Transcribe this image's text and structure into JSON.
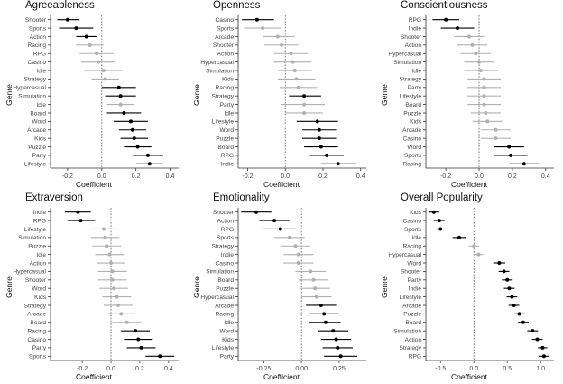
{
  "chart_data": [
    {
      "type": "scatter",
      "title": "Agreeableness",
      "xlabel": "Coefficient",
      "ylabel": "Genre",
      "xlim": [
        -0.3,
        0.45
      ],
      "xticks": [
        "-0.2",
        "0.0",
        "0.2",
        "0.4"
      ],
      "xtick_values": [
        -0.2,
        0.0,
        0.2,
        0.4
      ],
      "categories": [
        "Shooter",
        "Sports",
        "Action",
        "Racing",
        "RPG",
        "Casino",
        "Idle",
        "Strategy",
        "Hypercasual",
        "Simulation",
        "Idle",
        "Board",
        "Word",
        "Arcade",
        "Kids",
        "Puzzle",
        "Party",
        "Lifestyle"
      ],
      "estimates": [
        -0.2,
        -0.15,
        -0.09,
        -0.07,
        -0.03,
        -0.02,
        0.01,
        0.02,
        0.1,
        0.11,
        0.11,
        0.13,
        0.17,
        0.18,
        0.19,
        0.21,
        0.27,
        0.28
      ],
      "ci_low": [
        -0.26,
        -0.25,
        -0.15,
        -0.15,
        -0.13,
        -0.12,
        -0.1,
        -0.06,
        0.0,
        0.02,
        0.03,
        0.03,
        0.07,
        0.1,
        0.11,
        0.13,
        0.18,
        0.2
      ],
      "ci_high": [
        -0.13,
        -0.05,
        -0.03,
        0.01,
        0.07,
        0.08,
        0.12,
        0.1,
        0.2,
        0.2,
        0.19,
        0.23,
        0.27,
        0.26,
        0.27,
        0.29,
        0.36,
        0.36
      ],
      "significant": [
        true,
        true,
        true,
        false,
        false,
        false,
        false,
        false,
        true,
        true,
        false,
        true,
        true,
        true,
        true,
        true,
        true,
        true
      ]
    },
    {
      "type": "scatter",
      "title": "Openness",
      "xlabel": "Coefficient",
      "ylabel": "Genre",
      "xlim": [
        -0.25,
        0.43
      ],
      "xticks": [
        "-0.2",
        "0.0",
        "0.2",
        "0.4"
      ],
      "xtick_values": [
        -0.2,
        0.0,
        0.2,
        0.4
      ],
      "categories": [
        "Casino",
        "Sports",
        "Arcade",
        "Shooter",
        "Action",
        "Hypercasual",
        "Simulation",
        "Kids",
        "Racing",
        "Strategy",
        "Party",
        "Idle",
        "Lifestyle",
        "Word",
        "Puzzle",
        "Board",
        "RPG",
        "Indie"
      ],
      "estimates": [
        -0.15,
        -0.12,
        -0.04,
        -0.02,
        0.03,
        0.04,
        0.05,
        0.06,
        0.07,
        0.1,
        0.1,
        0.1,
        0.17,
        0.18,
        0.18,
        0.19,
        0.22,
        0.28
      ],
      "ci_low": [
        -0.23,
        -0.22,
        -0.12,
        -0.11,
        -0.06,
        -0.06,
        -0.04,
        -0.04,
        -0.03,
        0.02,
        -0.02,
        0.0,
        0.06,
        0.09,
        0.09,
        0.1,
        0.13,
        0.19
      ],
      "ci_high": [
        -0.06,
        -0.02,
        0.05,
        0.07,
        0.12,
        0.14,
        0.14,
        0.16,
        0.17,
        0.19,
        0.21,
        0.2,
        0.28,
        0.27,
        0.27,
        0.28,
        0.31,
        0.38
      ],
      "significant": [
        true,
        false,
        false,
        false,
        false,
        false,
        false,
        false,
        false,
        true,
        false,
        false,
        true,
        true,
        true,
        true,
        true,
        true
      ]
    },
    {
      "type": "scatter",
      "title": "Conscientiousness",
      "xlabel": "Coefficient",
      "ylabel": "Genre",
      "xlim": [
        -0.32,
        0.45
      ],
      "xticks": [
        "-0.2",
        "0.0",
        "0.2",
        "0.4"
      ],
      "xtick_values": [
        -0.2,
        0.0,
        0.2,
        0.4
      ],
      "categories": [
        "RPG",
        "Indie",
        "Shooter",
        "Action",
        "Hypercasual",
        "Simulation",
        "Idle",
        "Strategy",
        "Party",
        "Lifestyle",
        "Board",
        "Puzzle",
        "Kids",
        "Arcade",
        "Casino",
        "Word",
        "Sports",
        "Racing"
      ],
      "estimates": [
        -0.2,
        -0.13,
        -0.06,
        -0.04,
        -0.02,
        0.0,
        0.01,
        0.03,
        0.03,
        0.03,
        0.03,
        0.04,
        0.05,
        0.1,
        0.1,
        0.18,
        0.19,
        0.27
      ],
      "ci_low": [
        -0.28,
        -0.23,
        -0.15,
        -0.13,
        -0.11,
        -0.09,
        -0.09,
        -0.07,
        -0.07,
        -0.07,
        -0.07,
        -0.05,
        -0.04,
        0.01,
        0.01,
        0.09,
        0.09,
        0.18
      ],
      "ci_high": [
        -0.12,
        -0.03,
        0.03,
        0.05,
        0.07,
        0.09,
        0.11,
        0.13,
        0.13,
        0.13,
        0.13,
        0.13,
        0.14,
        0.19,
        0.19,
        0.27,
        0.29,
        0.36
      ],
      "significant": [
        true,
        true,
        false,
        false,
        false,
        false,
        false,
        false,
        false,
        false,
        false,
        false,
        false,
        false,
        false,
        true,
        true,
        true
      ]
    },
    {
      "type": "scatter",
      "title": "Extraversion",
      "xlabel": "Coefficient",
      "ylabel": "Genre",
      "xlim": [
        -0.42,
        0.47
      ],
      "xticks": [
        "-0.2",
        "0.0",
        "0.2",
        "0.4"
      ],
      "xtick_values": [
        -0.2,
        0.0,
        0.2,
        0.4
      ],
      "categories": [
        "Indie",
        "RPG",
        "Lifestyle",
        "Simulation",
        "Puzzle",
        "Idle",
        "Action",
        "Hypercasual",
        "Shooter",
        "Word",
        "Kids",
        "Strategy",
        "Arcade",
        "Board",
        "Racing",
        "Casino",
        "Party",
        "Sports"
      ],
      "estimates": [
        -0.23,
        -0.21,
        -0.05,
        -0.04,
        -0.03,
        -0.01,
        0.0,
        0.01,
        0.01,
        0.02,
        0.04,
        0.05,
        0.07,
        0.11,
        0.17,
        0.19,
        0.21,
        0.34
      ],
      "ci_low": [
        -0.32,
        -0.3,
        -0.15,
        -0.14,
        -0.13,
        -0.11,
        -0.1,
        -0.09,
        -0.09,
        -0.08,
        -0.06,
        -0.05,
        -0.03,
        0.01,
        0.07,
        0.09,
        0.11,
        0.24
      ],
      "ci_high": [
        -0.14,
        -0.11,
        0.05,
        0.06,
        0.07,
        0.09,
        0.1,
        0.11,
        0.11,
        0.12,
        0.14,
        0.15,
        0.17,
        0.21,
        0.27,
        0.29,
        0.31,
        0.44
      ],
      "significant": [
        true,
        true,
        false,
        false,
        false,
        false,
        false,
        false,
        false,
        false,
        false,
        false,
        false,
        false,
        true,
        true,
        true,
        true
      ]
    },
    {
      "type": "scatter",
      "title": "Emotionality",
      "xlabel": "Coefficient",
      "ylabel": "Genre",
      "xlim": [
        -0.42,
        0.43
      ],
      "xticks": [
        "-0.25",
        "0.00",
        "0.25"
      ],
      "xtick_values": [
        -0.25,
        0.0,
        0.25
      ],
      "categories": [
        "Shooter",
        "Action",
        "RPG",
        "Sports",
        "Strategy",
        "Indie",
        "Casino",
        "Simulation",
        "Board",
        "Puzzle",
        "Hypercasual",
        "Arcade",
        "Racing",
        "Idle",
        "Word",
        "Kids",
        "Lifestyle",
        "Party"
      ],
      "estimates": [
        -0.3,
        -0.18,
        -0.14,
        -0.08,
        -0.04,
        -0.02,
        -0.02,
        0.06,
        0.08,
        0.09,
        0.1,
        0.13,
        0.15,
        0.16,
        0.21,
        0.23,
        0.24,
        0.26
      ],
      "ci_low": [
        -0.4,
        -0.28,
        -0.25,
        -0.18,
        -0.14,
        -0.12,
        -0.12,
        -0.04,
        -0.02,
        -0.01,
        0.0,
        0.03,
        0.05,
        0.05,
        0.11,
        0.13,
        0.14,
        0.15
      ],
      "ci_high": [
        -0.2,
        -0.08,
        -0.04,
        0.02,
        0.06,
        0.08,
        0.08,
        0.16,
        0.18,
        0.19,
        0.2,
        0.23,
        0.25,
        0.26,
        0.31,
        0.33,
        0.34,
        0.37
      ],
      "significant": [
        true,
        true,
        true,
        false,
        false,
        false,
        false,
        false,
        false,
        false,
        false,
        true,
        true,
        true,
        true,
        true,
        true,
        true
      ]
    },
    {
      "type": "scatter",
      "title": "Overall Popularity",
      "xlabel": "Coefficient",
      "ylabel": "Genre",
      "xlim": [
        -0.72,
        1.2
      ],
      "xticks": [
        "-0.5",
        "0.0",
        "0.5",
        "1.0"
      ],
      "xtick_values": [
        -0.5,
        0.0,
        0.5,
        1.0
      ],
      "categories": [
        "Kids",
        "Casino",
        "Sports",
        "Idle",
        "Racing",
        "Hypercasual",
        "Word",
        "Shooter",
        "Party",
        "Indie",
        "Lifestyle",
        "Arcade",
        "Puzzle",
        "Board",
        "Simulation",
        "Action",
        "Strategy",
        "RPG"
      ],
      "estimates": [
        -0.6,
        -0.52,
        -0.5,
        -0.22,
        0.0,
        0.07,
        0.38,
        0.45,
        0.5,
        0.53,
        0.57,
        0.6,
        0.68,
        0.74,
        0.88,
        0.95,
        1.03,
        1.05
      ],
      "ci_low": [
        -0.68,
        -0.6,
        -0.58,
        -0.32,
        -0.08,
        0.0,
        0.29,
        0.37,
        0.42,
        0.45,
        0.49,
        0.52,
        0.6,
        0.66,
        0.8,
        0.87,
        0.96,
        0.97
      ],
      "ci_high": [
        -0.52,
        -0.44,
        -0.42,
        -0.12,
        0.08,
        0.14,
        0.47,
        0.53,
        0.58,
        0.61,
        0.65,
        0.68,
        0.76,
        0.82,
        0.96,
        1.03,
        1.1,
        1.13
      ],
      "significant": [
        true,
        true,
        true,
        true,
        false,
        false,
        true,
        true,
        true,
        true,
        true,
        true,
        true,
        true,
        true,
        true,
        true,
        true
      ]
    }
  ],
  "colors": {
    "significant": "#000000",
    "nonsignificant": "#b0b0b0",
    "axis": "#333333",
    "zero_line": "#555555"
  }
}
